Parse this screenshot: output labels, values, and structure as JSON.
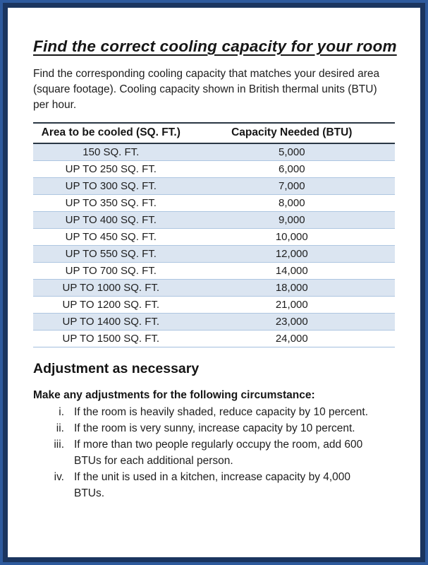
{
  "page": {
    "title": "Find the correct cooling capacity for your room",
    "intro": "Find the corresponding cooling capacity that matches your desired area (square footage). Cooling capacity shown in British thermal units (BTU) per hour."
  },
  "table": {
    "headers": [
      "Area to be cooled (SQ. FT.)",
      "Capacity Needed (BTU)"
    ],
    "rows": [
      [
        "150 SQ. FT.",
        "5,000"
      ],
      [
        "UP TO 250 SQ. FT.",
        "6,000"
      ],
      [
        "UP TO 300 SQ. FT.",
        "7,000"
      ],
      [
        "UP TO 350 SQ. FT.",
        "8,000"
      ],
      [
        "UP TO 400 SQ. FT.",
        "9,000"
      ],
      [
        "UP TO 450 SQ. FT.",
        "10,000"
      ],
      [
        "UP TO 550 SQ. FT.",
        "12,000"
      ],
      [
        "UP TO 700 SQ. FT.",
        "14,000"
      ],
      [
        "UP TO 1000 SQ. FT.",
        "18,000"
      ],
      [
        "UP TO 1200 SQ. FT.",
        "21,000"
      ],
      [
        "UP TO 1400 SQ. FT.",
        "23,000"
      ],
      [
        "UP TO 1500 SQ. FT.",
        "24,000"
      ]
    ]
  },
  "adjustments": {
    "heading": "Adjustment as necessary",
    "subheading": "Make any adjustments for the following circumstance:",
    "items": [
      {
        "marker": "i.",
        "text": "If the room is heavily shaded, reduce capacity by 10 percent."
      },
      {
        "marker": "ii.",
        "text": "If the room is very sunny, increase capacity by 10 percent."
      },
      {
        "marker": "iii.",
        "text": "If more than two people regularly occupy the room, add 600 BTUs for each additional person."
      },
      {
        "marker": "iv.",
        "text": "If the unit is used in a kitchen, increase capacity by 4,000 BTUs."
      }
    ]
  },
  "colors": {
    "frame_outer": "#2e5a9d",
    "frame_inner": "#1b355f",
    "row_stripe": "#dbe5f1",
    "row_stripe_border": "#aec6e1",
    "header_rule": "#2a3744",
    "text": "#1c1c1c"
  }
}
